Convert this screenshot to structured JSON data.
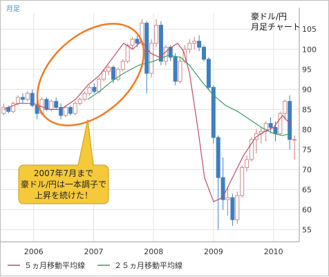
{
  "chart_data": {
    "type": "candlestick",
    "corner_label": "月足",
    "title_lines": [
      "豪ドル/円",
      "月足チャート"
    ],
    "x_tick_labels": [
      "2006",
      "2007",
      "2008",
      "2009",
      "2010"
    ],
    "x_tick_values": [
      2006.0,
      2007.0,
      2008.0,
      2009.0,
      2010.0
    ],
    "xlim": [
      2005.45,
      2010.43
    ],
    "y_ticks": [
      55,
      60,
      65,
      70,
      75,
      80,
      85,
      90,
      95,
      100,
      105
    ],
    "ylim": [
      52,
      109
    ],
    "grid": true,
    "up_color": "#f0a0a0",
    "down_color": "#3d7fc0",
    "ma5_color": "#c04a64",
    "ma25_color": "#2ea05c",
    "callout_color": "#f5c93a",
    "ellipse_color": "#f07a1e",
    "candles": [
      [
        84.0,
        86.5,
        83.5,
        85.5
      ],
      [
        85.5,
        86.0,
        84.0,
        84.5
      ],
      [
        84.5,
        87.0,
        84.0,
        86.5
      ],
      [
        86.5,
        88.5,
        86.0,
        88.0
      ],
      [
        88.0,
        89.0,
        86.5,
        87.5
      ],
      [
        87.5,
        89.5,
        87.0,
        89.0
      ],
      [
        89.0,
        90.0,
        85.5,
        86.0
      ],
      [
        86.0,
        87.5,
        82.5,
        84.0
      ],
      [
        84.0,
        88.0,
        83.5,
        87.5
      ],
      [
        87.5,
        88.0,
        84.5,
        85.0
      ],
      [
        85.0,
        87.5,
        84.5,
        87.0
      ],
      [
        87.0,
        88.0,
        85.0,
        85.5
      ],
      [
        85.5,
        86.5,
        82.5,
        83.5
      ],
      [
        83.5,
        86.0,
        83.0,
        85.5
      ],
      [
        85.5,
        86.0,
        83.5,
        84.0
      ],
      [
        84.0,
        87.0,
        83.5,
        86.5
      ],
      [
        86.5,
        88.0,
        86.0,
        87.5
      ],
      [
        87.5,
        89.5,
        87.0,
        89.0
      ],
      [
        89.0,
        91.0,
        88.5,
        90.5
      ],
      [
        90.5,
        91.5,
        89.0,
        89.5
      ],
      [
        89.5,
        93.0,
        89.0,
        92.5
      ],
      [
        92.5,
        95.0,
        92.0,
        94.5
      ],
      [
        94.5,
        96.0,
        93.5,
        95.5
      ],
      [
        95.5,
        96.0,
        91.5,
        92.5
      ],
      [
        92.5,
        95.5,
        92.0,
        95.0
      ],
      [
        95.0,
        97.5,
        94.5,
        97.0
      ],
      [
        97.0,
        101.5,
        96.5,
        101.0
      ],
      [
        101.0,
        103.0,
        100.0,
        102.5
      ],
      [
        102.5,
        103.5,
        100.5,
        101.5
      ],
      [
        101.5,
        107.5,
        101.0,
        106.5
      ],
      [
        106.5,
        107.0,
        89.0,
        94.0
      ],
      [
        94.0,
        102.5,
        93.0,
        101.5
      ],
      [
        101.5,
        107.5,
        100.5,
        106.0
      ],
      [
        106.0,
        107.0,
        96.0,
        97.0
      ],
      [
        97.0,
        101.0,
        96.0,
        100.5
      ],
      [
        100.5,
        101.0,
        97.0,
        98.0
      ],
      [
        98.0,
        99.0,
        91.0,
        92.0
      ],
      [
        92.0,
        98.0,
        91.5,
        97.0
      ],
      [
        97.0,
        101.0,
        96.5,
        100.0
      ],
      [
        100.0,
        102.5,
        99.0,
        101.5
      ],
      [
        101.5,
        103.0,
        100.0,
        102.0
      ],
      [
        102.0,
        103.5,
        99.5,
        100.5
      ],
      [
        100.5,
        101.0,
        97.0,
        97.5
      ],
      [
        97.5,
        98.0,
        90.0,
        90.5
      ],
      [
        90.5,
        91.0,
        76.5,
        78.0
      ],
      [
        78.0,
        78.5,
        55.0,
        68.0
      ],
      [
        68.0,
        73.0,
        60.0,
        62.5
      ],
      [
        62.5,
        65.5,
        58.5,
        63.0
      ],
      [
        63.0,
        64.0,
        56.0,
        57.5
      ],
      [
        57.5,
        64.5,
        56.5,
        63.5
      ],
      [
        63.5,
        71.0,
        63.0,
        70.5
      ],
      [
        70.5,
        73.5,
        69.5,
        72.5
      ],
      [
        72.5,
        78.0,
        72.0,
        77.5
      ],
      [
        77.5,
        80.0,
        74.0,
        79.0
      ],
      [
        79.0,
        80.5,
        76.5,
        79.5
      ],
      [
        79.5,
        82.0,
        77.0,
        81.5
      ],
      [
        81.5,
        83.0,
        79.0,
        80.5
      ],
      [
        80.5,
        82.0,
        77.0,
        79.0
      ],
      [
        79.0,
        84.5,
        78.5,
        84.0
      ],
      [
        84.0,
        87.5,
        82.5,
        87.0
      ],
      [
        87.0,
        88.5,
        75.0,
        77.5
      ],
      [
        77.5,
        78.5,
        72.5,
        77.5
      ]
    ],
    "ma5": [
      [
        2005.5,
        85.0
      ],
      [
        2005.75,
        86.5
      ],
      [
        2006.0,
        86.5
      ],
      [
        2006.25,
        85.0
      ],
      [
        2006.45,
        85.0
      ],
      [
        2006.7,
        87.5
      ],
      [
        2006.9,
        91.0
      ],
      [
        2007.1,
        93.5
      ],
      [
        2007.3,
        97.5
      ],
      [
        2007.5,
        101.5
      ],
      [
        2007.65,
        100.0
      ],
      [
        2007.8,
        102.0
      ],
      [
        2007.95,
        99.0
      ],
      [
        2008.1,
        98.0
      ],
      [
        2008.25,
        100.0
      ],
      [
        2008.4,
        101.5
      ],
      [
        2008.5,
        99.5
      ],
      [
        2008.6,
        94.0
      ],
      [
        2008.75,
        79.0
      ],
      [
        2008.85,
        68.0
      ],
      [
        2009.0,
        62.0
      ],
      [
        2009.15,
        63.0
      ],
      [
        2009.3,
        67.5
      ],
      [
        2009.5,
        73.5
      ],
      [
        2009.7,
        78.0
      ],
      [
        2009.85,
        79.5
      ],
      [
        2010.0,
        80.5
      ],
      [
        2010.15,
        83.5
      ],
      [
        2010.3,
        81.0
      ]
    ],
    "ma25": [
      [
        2006.9,
        87.5
      ],
      [
        2007.1,
        89.5
      ],
      [
        2007.3,
        92.0
      ],
      [
        2007.5,
        94.0
      ],
      [
        2007.75,
        96.0
      ],
      [
        2008.0,
        97.0
      ],
      [
        2008.25,
        98.5
      ],
      [
        2008.45,
        98.0
      ],
      [
        2008.6,
        96.0
      ],
      [
        2008.8,
        92.0
      ],
      [
        2009.0,
        88.5
      ],
      [
        2009.2,
        86.0
      ],
      [
        2009.4,
        84.5
      ],
      [
        2009.6,
        82.5
      ],
      [
        2009.8,
        80.5
      ],
      [
        2010.0,
        79.0
      ],
      [
        2010.15,
        78.5
      ],
      [
        2010.3,
        79.0
      ]
    ],
    "callout_lines": [
      "2007年7月まで",
      "豪ドル/円は一本調子で",
      "上昇を続けた！"
    ],
    "legend": [
      "５ヵ月移動平均線",
      "２５ヵ月移動平均線"
    ]
  }
}
